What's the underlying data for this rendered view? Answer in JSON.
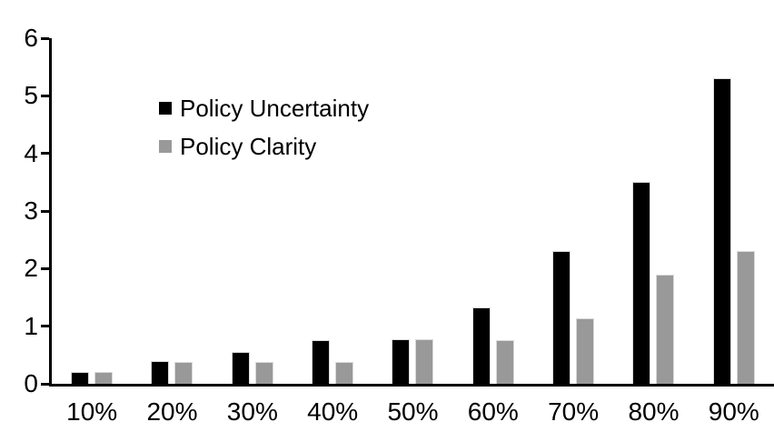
{
  "chart_data": {
    "type": "bar",
    "title": "",
    "xlabel": "",
    "ylabel": "",
    "categories": [
      "10%",
      "20%",
      "30%",
      "40%",
      "50%",
      "60%",
      "70%",
      "80%",
      "90%"
    ],
    "series": [
      {
        "name": "Policy Uncertainty",
        "color": "#000000",
        "values": [
          0.2,
          0.4,
          0.56,
          0.76,
          0.78,
          1.33,
          2.3,
          3.5,
          5.3
        ]
      },
      {
        "name": "Policy Clarity",
        "color": "#999999",
        "values": [
          0.2,
          0.38,
          0.38,
          0.38,
          0.77,
          0.76,
          1.14,
          1.9,
          2.3
        ]
      }
    ],
    "ylim": [
      0,
      6
    ],
    "yticks": [
      0,
      1,
      2,
      3,
      4,
      5,
      6
    ],
    "grid": false,
    "legend_position": "top-left-inside",
    "axis_color": "#000000",
    "bar_border_color": "#d9d9d9",
    "background_color": "#ffffff"
  }
}
